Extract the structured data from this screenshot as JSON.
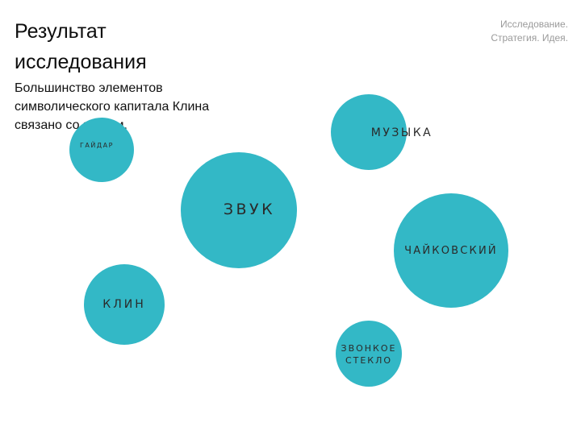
{
  "slide": {
    "title_line1": "Результат",
    "title_line2": "исследования",
    "subtitle_line1": "Большинство элементов",
    "subtitle_line2": "символического капитала Клина",
    "subtitle_line3": "связано со звуком.",
    "brand_line1": "Исследование.",
    "brand_line2": "Стратегия. Идея."
  },
  "colors": {
    "bubble": "#33b8c6",
    "brand_text": "#9a9a9a"
  },
  "bubbles": {
    "gaidar": "ГАЙДАР",
    "muzyka": "МУЗЫКА",
    "zvuk": "ЗВУК",
    "chaikovsky": "ЧАЙКОВСКИЙ",
    "klin": "КЛИН",
    "zvonkoe_line1": "ЗВОНКОЕ",
    "zvonkoe_line2": "СТЕКЛО"
  }
}
